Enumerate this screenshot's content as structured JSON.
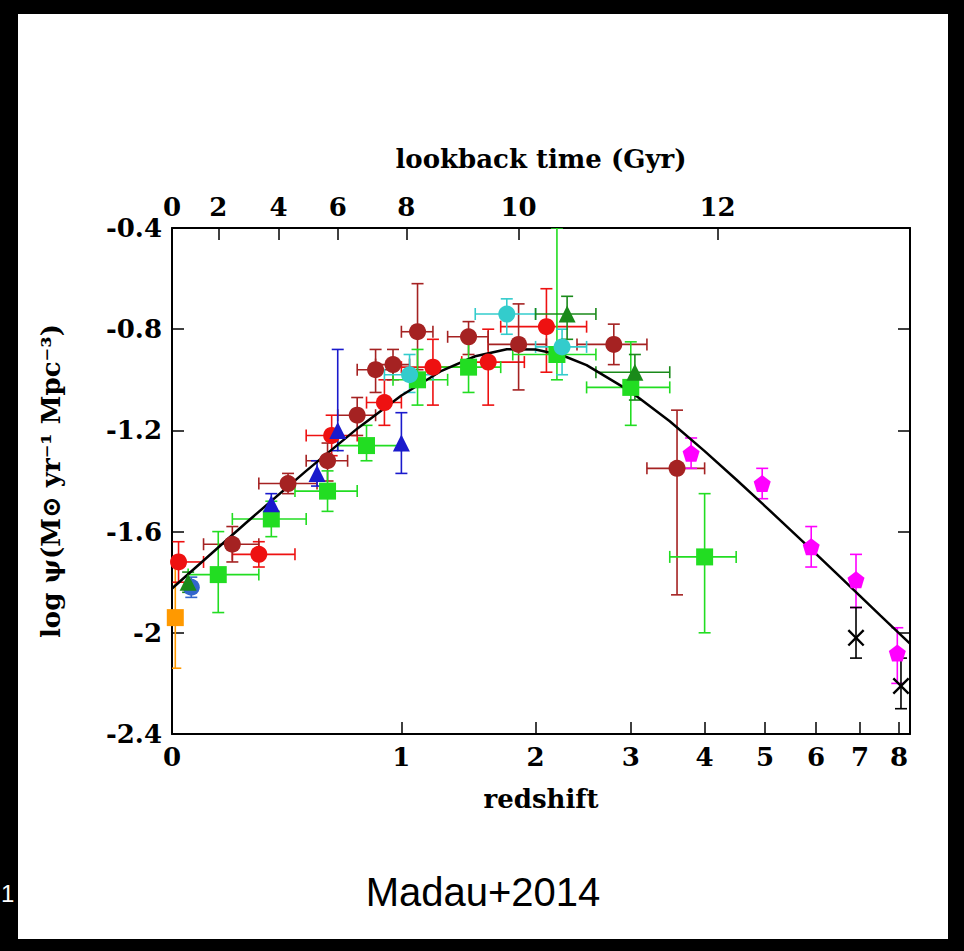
{
  "chart_data": {
    "type": "scatter",
    "x_label": "redshift",
    "y_label": "log ψ(M⊙ yr⁻¹ Mpc⁻³)",
    "log": "x",
    "xlim": [
      0,
      8.3
    ],
    "xticks": [
      0,
      1,
      2,
      3,
      4,
      5,
      6,
      7,
      8
    ],
    "ylim": [
      -2.4,
      -0.4
    ],
    "yticks": [
      -2.4,
      -2,
      -1.6,
      -1.2,
      -0.8,
      -0.4
    ],
    "grid": false,
    "top_axis": {
      "label": "lookback time (Gyr)",
      "ticks": [
        0,
        2,
        4,
        6,
        8,
        10,
        12
      ],
      "at_redshift": [
        0,
        0.15,
        0.38,
        0.65,
        1.03,
        1.85,
        4.2
      ]
    },
    "caption": "Madau+2014",
    "slide_number": "1",
    "series": [
      {
        "type": "line",
        "color": "#000000",
        "line_style": "solid",
        "x": [
          0,
          0.25,
          0.5,
          0.75,
          1,
          1.25,
          1.5,
          1.75,
          2,
          2.25,
          2.5,
          3,
          3.5,
          4,
          4.5,
          5,
          5.5,
          6,
          6.5,
          7,
          7.5,
          8,
          8.3
        ],
        "values": [
          -1.825,
          -1.566,
          -1.36,
          -1.193,
          -1.062,
          -0.967,
          -0.907,
          -0.879,
          -0.88,
          -0.903,
          -0.942,
          -1.047,
          -1.164,
          -1.282,
          -1.394,
          -1.499,
          -1.597,
          -1.688,
          -1.774,
          -1.855,
          -1.931,
          -2.002,
          -2.043
        ]
      },
      {
        "type": "scatter",
        "color": "#ff9900",
        "marker": "square",
        "x": [
          0.01
        ],
        "values": [
          -1.94
        ],
        "x_lo": [
          null
        ],
        "x_hi": [
          null
        ],
        "y_lo": [
          -2.14
        ],
        "y_hi": [
          -1.72
        ]
      },
      {
        "type": "scatter",
        "color": "#3366cc",
        "marker": "circle",
        "x": [
          0.06
        ],
        "values": [
          -1.82
        ],
        "x_lo": [
          null
        ],
        "x_hi": [
          null
        ],
        "y_lo": [
          -1.86
        ],
        "y_hi": [
          -1.78
        ]
      },
      {
        "type": "scatter",
        "color": "#ee1111",
        "marker": "circle",
        "x": [
          0.02,
          0.3,
          0.62,
          0.9,
          1.2,
          1.6,
          2.1
        ],
        "values": [
          -1.72,
          -1.69,
          -1.22,
          -1.09,
          -0.95,
          -0.93,
          -0.79
        ],
        "x_lo": [
          0,
          0.2,
          0.5,
          0.8,
          1,
          1.4,
          1.7
        ],
        "x_hi": [
          0.1,
          0.45,
          0.75,
          1,
          1.4,
          1.9,
          2.5
        ],
        "y_lo": [
          -1.8,
          -1.74,
          -1.3,
          -1.18,
          -1.1,
          -1.1,
          -0.97
        ],
        "y_hi": [
          -1.64,
          -1.64,
          -1.14,
          -1,
          -0.84,
          -0.8,
          -0.64
        ]
      },
      {
        "type": "scatter",
        "color": "#a52222",
        "marker": "circle",
        "x": [
          0.2,
          0.42,
          0.6,
          0.75,
          0.85,
          0.95,
          1.1,
          1.45,
          1.85,
          2.8,
          3.6
        ],
        "values": [
          -1.65,
          -1.41,
          -1.32,
          -1.14,
          -0.96,
          -0.94,
          -0.81,
          -0.83,
          -0.86,
          -0.86,
          -1.35
        ],
        "x_lo": [
          0.1,
          0.3,
          0.5,
          0.65,
          0.75,
          0.85,
          1,
          1.3,
          1.6,
          2.4,
          3.2
        ],
        "x_hi": [
          0.3,
          0.55,
          0.7,
          0.85,
          0.95,
          1.05,
          1.2,
          1.6,
          2.1,
          3.2,
          4
        ],
        "y_lo": [
          -1.72,
          -1.45,
          -1.4,
          -1.22,
          -1.05,
          -1,
          -0.96,
          -0.9,
          -1.04,
          -0.94,
          -1.85
        ],
        "y_hi": [
          -1.58,
          -1.37,
          -1.25,
          -1.07,
          -0.88,
          -0.88,
          -0.62,
          -0.77,
          -0.7,
          -0.78,
          -1.12
        ]
      },
      {
        "type": "scatter",
        "color": "#22dd22",
        "marker": "square",
        "x": [
          0.15,
          0.35,
          0.6,
          0.8,
          1.1,
          1.45,
          2.2,
          3,
          4
        ],
        "values": [
          -1.77,
          -1.55,
          -1.44,
          -1.26,
          -1,
          -0.95,
          -0.9,
          -1.03,
          -1.7
        ],
        "x_lo": [
          0.05,
          0.2,
          0.45,
          0.65,
          0.95,
          1.2,
          1.8,
          2.5,
          3.5
        ],
        "x_hi": [
          0.3,
          0.5,
          0.75,
          1,
          1.3,
          1.7,
          2.6,
          3.5,
          4.5
        ],
        "y_lo": [
          -1.92,
          -1.62,
          -1.52,
          -1.32,
          -1.1,
          -1.05,
          -1,
          -1.18,
          -2
        ],
        "y_hi": [
          -1.6,
          -1.48,
          -1.36,
          -1.18,
          -0.88,
          -0.85,
          -0.4,
          -0.85,
          -1.45
        ]
      },
      {
        "type": "scatter",
        "color": "#33cccc",
        "marker": "circle",
        "x": [
          1.05,
          1.75,
          2.25
        ],
        "values": [
          -0.98,
          -0.74,
          -0.87
        ],
        "x_lo": [
          0.9,
          1.5,
          2
        ],
        "x_hi": [
          1.2,
          2,
          2.5
        ],
        "y_lo": [
          -1.05,
          -0.82,
          -0.98
        ],
        "y_hi": [
          -0.9,
          -0.68,
          -0.8
        ]
      },
      {
        "type": "scatter",
        "color": "#1a8a1a",
        "marker": "triangle",
        "x": [
          0.05,
          2.3,
          3.05
        ],
        "values": [
          -1.8,
          -0.74,
          -0.97
        ],
        "x_lo": [
          null,
          2,
          2.6
        ],
        "x_hi": [
          null,
          2.6,
          3.5
        ],
        "y_lo": [
          -1.84,
          -0.84,
          -1.08
        ],
        "y_hi": [
          -1.76,
          -0.67,
          -0.9
        ]
      },
      {
        "type": "scatter",
        "color": "#1a1acc",
        "marker": "triangle",
        "x": [
          0.35,
          0.55,
          0.65,
          1
        ],
        "values": [
          -1.49,
          -1.37,
          -1.2,
          -1.25
        ],
        "x_lo": [
          null,
          null,
          null,
          null
        ],
        "x_hi": [
          null,
          null,
          null,
          null
        ],
        "y_lo": [
          -1.53,
          -1.42,
          -1.28,
          -1.37
        ],
        "y_hi": [
          -1.45,
          -1.32,
          -0.88,
          -1.13
        ]
      },
      {
        "type": "scatter",
        "color": "#ff00ff",
        "marker": "pentagon",
        "x": [
          3.8,
          4.95,
          5.9,
          6.9,
          7.95
        ],
        "values": [
          -1.29,
          -1.41,
          -1.66,
          -1.79,
          -2.08
        ],
        "x_lo": [
          null,
          null,
          null,
          null,
          null
        ],
        "x_hi": [
          null,
          null,
          null,
          null,
          null
        ],
        "y_lo": [
          -1.35,
          -1.47,
          -1.74,
          -1.9,
          -2.2
        ],
        "y_hi": [
          -1.23,
          -1.35,
          -1.58,
          -1.69,
          -1.98
        ]
      },
      {
        "type": "scatter",
        "color": "#000000",
        "marker": "cross",
        "x": [
          6.9,
          8.05
        ],
        "values": [
          -2.02,
          -2.21
        ],
        "x_lo": [
          null,
          null
        ],
        "x_hi": [
          null,
          null
        ],
        "y_lo": [
          -2.1,
          -2.3
        ],
        "y_hi": [
          -1.9,
          -2.1
        ]
      }
    ]
  }
}
